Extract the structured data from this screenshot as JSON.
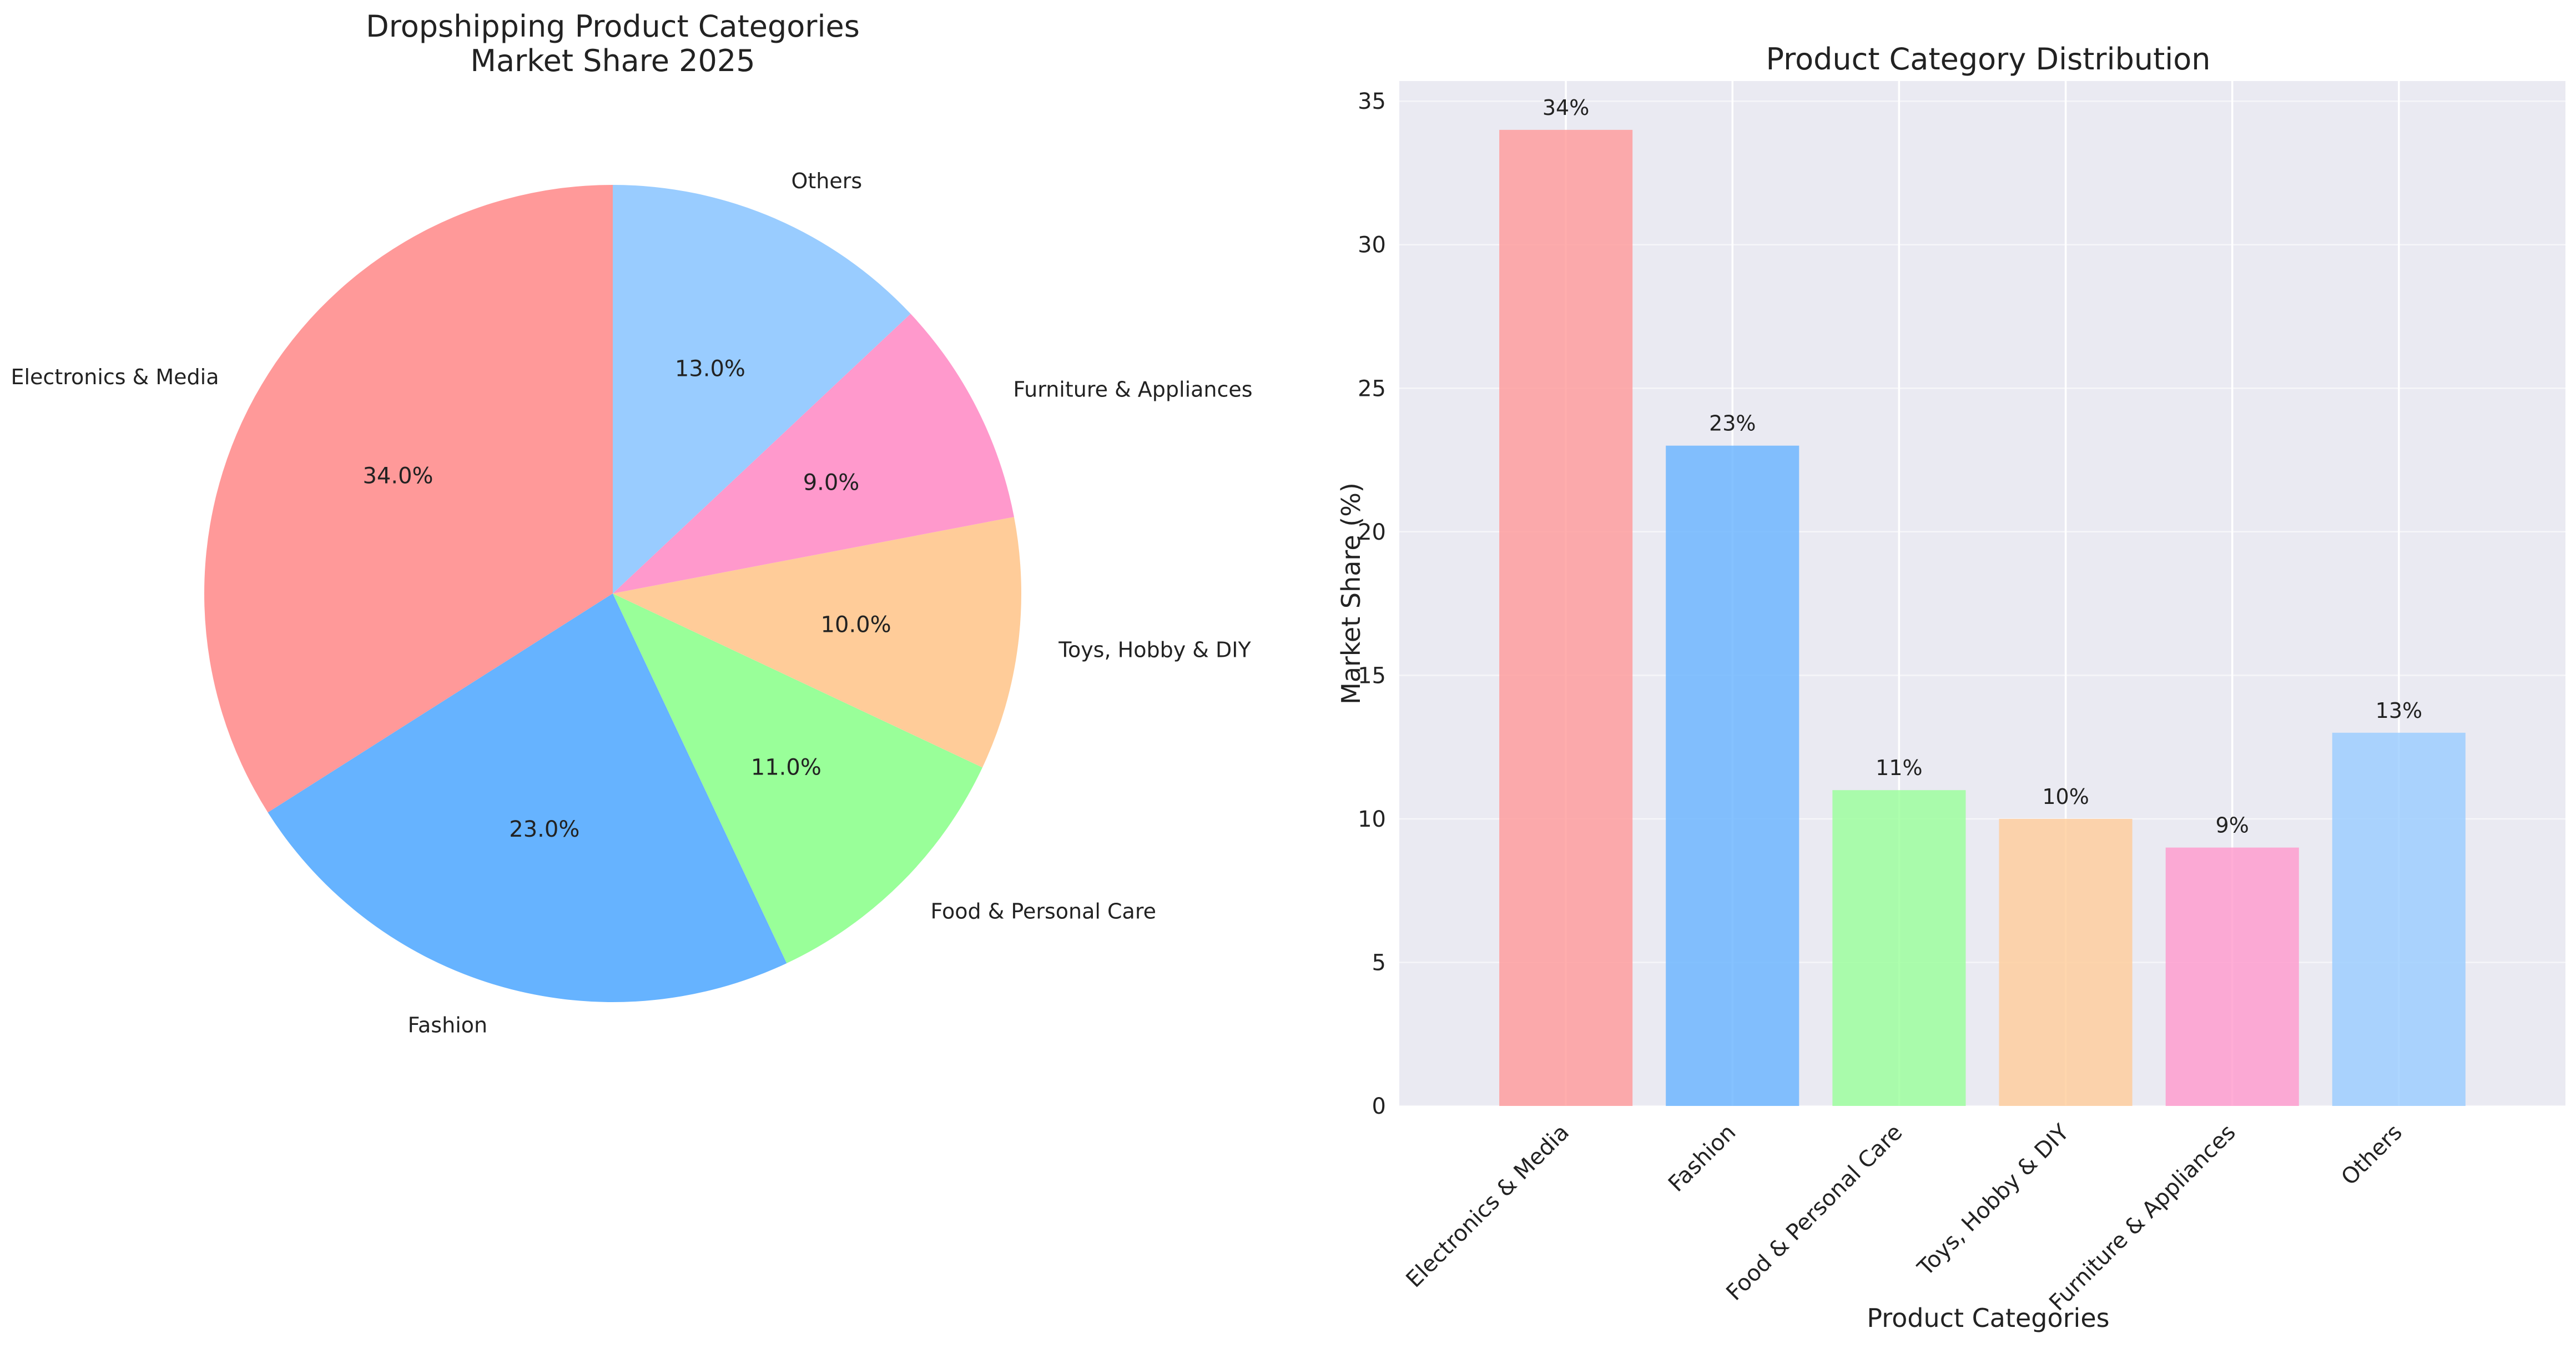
{
  "colors": [
    "#ff9999",
    "#66b3ff",
    "#99ff99",
    "#ffcc99",
    "#ff99cc",
    "#99ccff"
  ],
  "chart_data": [
    {
      "type": "pie",
      "title_lines": [
        "Dropshipping Product Categories",
        "Market Share 2025"
      ],
      "labels": [
        "Electronics & Media",
        "Fashion",
        "Food & Personal Care",
        "Toys, Hobby & DIY",
        "Furniture & Appliances",
        "Others"
      ],
      "values": [
        34,
        23,
        11,
        10,
        9,
        13
      ],
      "value_labels": [
        "34.0%",
        "23.0%",
        "11.0%",
        "10.0%",
        "9.0%",
        "13.0%"
      ],
      "start_angle_deg": 90,
      "direction": "counterclockwise"
    },
    {
      "type": "bar",
      "title": "Product Category Distribution",
      "categories": [
        "Electronics & Media",
        "Fashion",
        "Food & Personal Care",
        "Toys, Hobby & DIY",
        "Furniture & Appliances",
        "Others"
      ],
      "values": [
        34,
        23,
        11,
        10,
        9,
        13
      ],
      "value_labels": [
        "34%",
        "23%",
        "11%",
        "10%",
        "9%",
        "13%"
      ],
      "xlabel": "Product Categories",
      "ylabel": "Market Share (%)",
      "ylim": [
        0,
        35.7
      ],
      "yticks": [
        "0",
        "5",
        "10",
        "15",
        "20",
        "25",
        "30",
        "35"
      ],
      "grid": true
    }
  ]
}
